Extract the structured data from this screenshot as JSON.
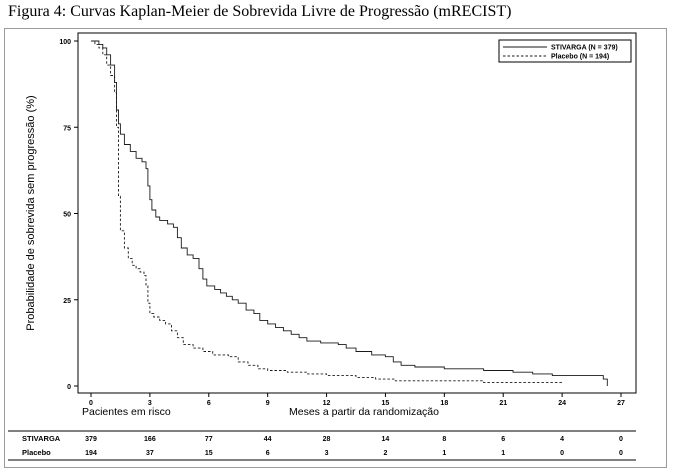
{
  "figure_title": "Figura 4: Curvas Kaplan-Meier de Sobrevida Livre de Progressão (mRECIST)",
  "chart_data": {
    "type": "line",
    "ylabel": "Probabilidade de sobrevida sem progressão (%)",
    "xlabel": "Meses a partir da randomização",
    "xlim": [
      -0.5,
      27.5
    ],
    "ylim": [
      0,
      100
    ],
    "x_ticks": [
      0,
      3,
      6,
      9,
      12,
      15,
      18,
      21,
      24,
      27
    ],
    "y_ticks": [
      0,
      25,
      50,
      75,
      100
    ],
    "legend_position": "top-right",
    "series": [
      {
        "name": "STIVARGA (N = 379)",
        "style": "solid",
        "points": [
          [
            0,
            100
          ],
          [
            0.2,
            100
          ],
          [
            0.4,
            99
          ],
          [
            0.6,
            98
          ],
          [
            0.8,
            96
          ],
          [
            1.0,
            93
          ],
          [
            1.2,
            88
          ],
          [
            1.3,
            80
          ],
          [
            1.4,
            76
          ],
          [
            1.5,
            73
          ],
          [
            1.7,
            70
          ],
          [
            2.0,
            68
          ],
          [
            2.3,
            66
          ],
          [
            2.6,
            65
          ],
          [
            2.8,
            63
          ],
          [
            2.9,
            58
          ],
          [
            3.0,
            54
          ],
          [
            3.1,
            51
          ],
          [
            3.3,
            49
          ],
          [
            3.5,
            48
          ],
          [
            3.9,
            47
          ],
          [
            4.2,
            46
          ],
          [
            4.4,
            43
          ],
          [
            4.6,
            40
          ],
          [
            4.9,
            38
          ],
          [
            5.2,
            37
          ],
          [
            5.5,
            34
          ],
          [
            5.7,
            31
          ],
          [
            5.9,
            29
          ],
          [
            6.3,
            28
          ],
          [
            6.6,
            27
          ],
          [
            6.9,
            26
          ],
          [
            7.2,
            25
          ],
          [
            7.5,
            24
          ],
          [
            7.9,
            22
          ],
          [
            8.3,
            21
          ],
          [
            8.6,
            19
          ],
          [
            9.0,
            18
          ],
          [
            9.4,
            17
          ],
          [
            9.8,
            16
          ],
          [
            10.2,
            15
          ],
          [
            10.6,
            14
          ],
          [
            11.0,
            13
          ],
          [
            11.7,
            12.5
          ],
          [
            12.6,
            12
          ],
          [
            13.0,
            11
          ],
          [
            13.5,
            10
          ],
          [
            14.3,
            9
          ],
          [
            15.0,
            8.5
          ],
          [
            15.4,
            7
          ],
          [
            15.8,
            6
          ],
          [
            16.5,
            5.5
          ],
          [
            18.0,
            5
          ],
          [
            20.0,
            4.5
          ],
          [
            21.5,
            4
          ],
          [
            22.5,
            3.5
          ],
          [
            23.5,
            3
          ],
          [
            25.0,
            3
          ],
          [
            26.0,
            3
          ],
          [
            26.1,
            2
          ],
          [
            26.3,
            0
          ]
        ]
      },
      {
        "name": "Placebo (N = 194)",
        "style": "dashed",
        "points": [
          [
            0,
            100
          ],
          [
            0.2,
            99
          ],
          [
            0.4,
            98
          ],
          [
            0.6,
            96
          ],
          [
            0.8,
            93
          ],
          [
            1.0,
            90
          ],
          [
            1.2,
            85
          ],
          [
            1.3,
            75
          ],
          [
            1.4,
            55
          ],
          [
            1.5,
            45
          ],
          [
            1.7,
            40
          ],
          [
            1.9,
            37
          ],
          [
            2.1,
            35
          ],
          [
            2.3,
            34
          ],
          [
            2.5,
            33
          ],
          [
            2.7,
            32
          ],
          [
            2.8,
            29
          ],
          [
            2.9,
            24
          ],
          [
            3.0,
            21
          ],
          [
            3.2,
            20
          ],
          [
            3.5,
            19
          ],
          [
            3.8,
            18
          ],
          [
            4.1,
            16
          ],
          [
            4.4,
            14
          ],
          [
            4.7,
            12
          ],
          [
            5.2,
            11
          ],
          [
            5.7,
            10
          ],
          [
            6.2,
            9
          ],
          [
            7.0,
            8.5
          ],
          [
            7.5,
            7
          ],
          [
            8.0,
            6
          ],
          [
            8.5,
            5
          ],
          [
            9.0,
            4.5
          ],
          [
            10.0,
            4
          ],
          [
            11.0,
            3.5
          ],
          [
            12.0,
            3
          ],
          [
            13.5,
            2.5
          ],
          [
            14.5,
            2
          ],
          [
            15.5,
            1.5
          ],
          [
            18.0,
            1.5
          ],
          [
            20.0,
            1
          ],
          [
            24.0,
            1
          ]
        ]
      }
    ],
    "risk_table": {
      "title": "Pacientes em risco",
      "times": [
        0,
        3,
        6,
        9,
        12,
        15,
        18,
        21,
        24,
        27
      ],
      "rows": [
        {
          "label": "STIVARGA",
          "counts": [
            "379",
            "166",
            "77",
            "44",
            "28",
            "14",
            "8",
            "6",
            "4",
            "0"
          ]
        },
        {
          "label": "Placebo",
          "counts": [
            "194",
            "37",
            "15",
            "6",
            "3",
            "2",
            "1",
            "1",
            "0",
            "0"
          ]
        }
      ]
    }
  }
}
